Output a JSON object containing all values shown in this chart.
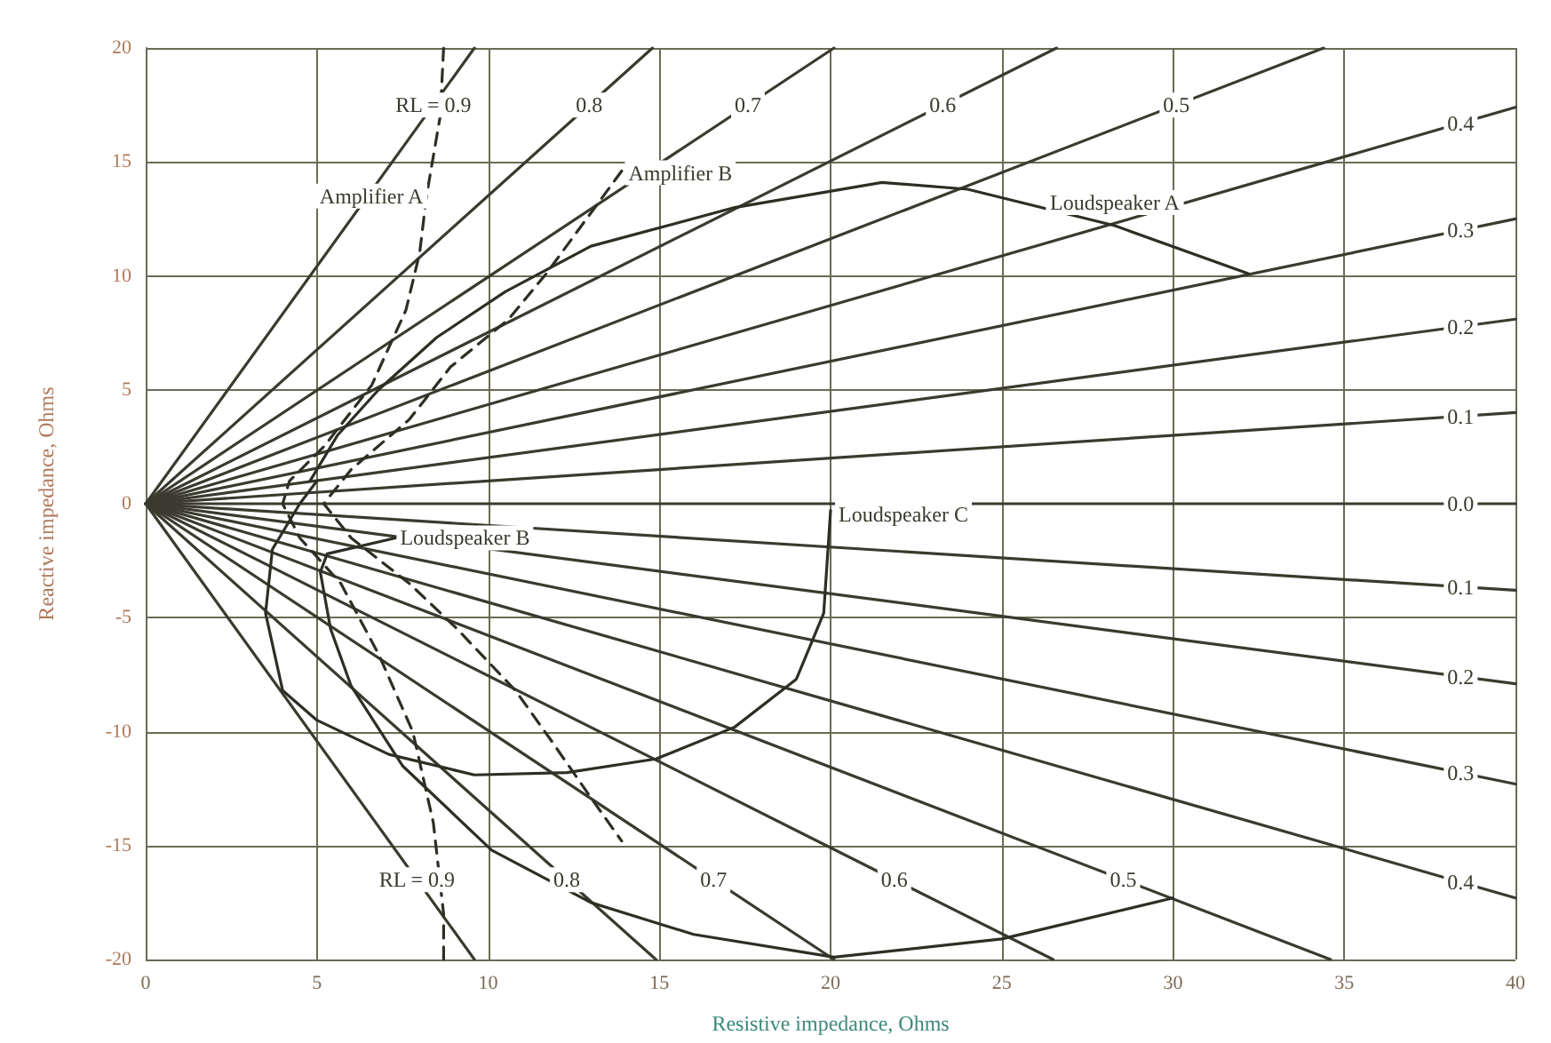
{
  "chart_data": {
    "type": "line",
    "xlabel": "Resistive impedance, Ohms",
    "ylabel": "Reactive impedance, Ohms",
    "xlim": [
      0,
      40
    ],
    "xticks": [
      0,
      5,
      10,
      15,
      20,
      25,
      30,
      35,
      40
    ],
    "ylim": [
      -20,
      20
    ],
    "yticks": [
      -20,
      -15,
      -10,
      -5,
      0,
      5,
      10,
      15,
      20
    ],
    "grid": true,
    "marker": "none",
    "line_style": "solid",
    "series": [
      {
        "name": "RL = 0.9",
        "color": "#3a3a2e",
        "x": [
          0,
          9.6
        ],
        "values": [
          0,
          20
        ]
      },
      {
        "name": "0.8",
        "color": "#3a3a2e",
        "x": [
          0,
          14.8
        ],
        "values": [
          0,
          20
        ]
      },
      {
        "name": "0.7",
        "color": "#3a3a2e",
        "x": [
          0,
          20.1
        ],
        "values": [
          0,
          20
        ]
      },
      {
        "name": "0.6",
        "color": "#3a3a2e",
        "x": [
          0,
          26.6
        ],
        "values": [
          0,
          20
        ]
      },
      {
        "name": "0.5",
        "color": "#3a3a2e",
        "x": [
          0,
          34.4
        ],
        "values": [
          0,
          20
        ]
      },
      {
        "name": "0.4",
        "color": "#3a3a2e",
        "x": [
          0,
          40
        ],
        "values": [
          0,
          17.4
        ]
      },
      {
        "name": "0.3",
        "color": "#3a3a2e",
        "x": [
          0,
          40
        ],
        "values": [
          0,
          12.5
        ]
      },
      {
        "name": "0.2",
        "color": "#3a3a2e",
        "x": [
          0,
          40
        ],
        "values": [
          0,
          8.1
        ]
      },
      {
        "name": "0.1",
        "color": "#3a3a2e",
        "x": [
          0,
          40
        ],
        "values": [
          0,
          4
        ]
      },
      {
        "name": "0.0",
        "color": "#3a3a2e",
        "x": [
          0,
          40
        ],
        "values": [
          0,
          0
        ]
      },
      {
        "name": "0.1",
        "color": "#3a3a2e",
        "x": [
          0,
          40
        ],
        "values": [
          0,
          -3.8
        ]
      },
      {
        "name": "0.2",
        "color": "#3a3a2e",
        "x": [
          0,
          40
        ],
        "values": [
          0,
          -7.9
        ]
      },
      {
        "name": "0.3",
        "color": "#3a3a2e",
        "x": [
          0,
          40
        ],
        "values": [
          0,
          -12.3
        ]
      },
      {
        "name": "0.4",
        "color": "#3a3a2e",
        "x": [
          0,
          40
        ],
        "values": [
          0,
          -17.3
        ]
      },
      {
        "name": "0.5",
        "color": "#3a3a2e",
        "x": [
          0,
          34.6
        ],
        "values": [
          0,
          -20
        ]
      },
      {
        "name": "0.6",
        "color": "#3a3a2e",
        "x": [
          0,
          26.5
        ],
        "values": [
          0,
          -20
        ]
      },
      {
        "name": "0.7",
        "color": "#3a3a2e",
        "x": [
          0,
          20.1
        ],
        "values": [
          0,
          -20
        ]
      },
      {
        "name": "0.8",
        "color": "#3a3a2e",
        "x": [
          0,
          14.9
        ],
        "values": [
          0,
          -20
        ]
      },
      {
        "name": "RL = 0.9",
        "color": "#3a3a2e",
        "x": [
          0,
          9.6
        ],
        "values": [
          0,
          -20
        ]
      },
      {
        "name": "Amplifier A",
        "color": "#2e2e24",
        "line_style": "dashed",
        "x": [
          8.7,
          8.6,
          8.2,
          8.0,
          7.6,
          6.6,
          5.2,
          4.2,
          4.0,
          4.5,
          5.7,
          6.8,
          7.8,
          8.4,
          8.7,
          8.7
        ],
        "values": [
          20,
          17,
          13.5,
          11,
          8.5,
          5.2,
          2.5,
          1,
          0,
          -1.5,
          -3.5,
          -6.6,
          -10,
          -14,
          -18,
          -20
        ]
      },
      {
        "name": "Amplifier B",
        "color": "#2e2e24",
        "line_style": "dashed",
        "x": [
          13.9,
          11.7,
          10.6,
          8.9,
          7.7,
          6.0,
          5.2,
          6.0,
          7.7,
          9.1,
          10.8,
          11.8,
          13.0,
          13.9
        ],
        "values": [
          14.6,
          10.1,
          8.1,
          6.0,
          3.7,
          1.5,
          0,
          -1.5,
          -3.5,
          -5.5,
          -8.2,
          -10.3,
          -12.9,
          -14.8
        ]
      },
      {
        "name": "Loudspeaker A",
        "color": "#2e2e24",
        "x": [
          4.8,
          5.6,
          6.8,
          8.5,
          10.5,
          13,
          17.2,
          21.5,
          24,
          28.3,
          32.2
        ],
        "values": [
          1,
          3,
          5,
          7.3,
          9.3,
          11.3,
          13,
          14.1,
          13.8,
          12.2,
          10.1
        ]
      },
      {
        "name": "Loudspeaker B",
        "color": "#2e2e24",
        "x": [
          7.3,
          5.3,
          5.1,
          5.4,
          6,
          7.5,
          10.1,
          13,
          16,
          20.1,
          25,
          30
        ],
        "values": [
          -1.5,
          -2.2,
          -3,
          -5.5,
          -8,
          -11.5,
          -15.2,
          -17.5,
          -18.9,
          -19.9,
          -19.1,
          -17.3
        ]
      },
      {
        "name": "Loudspeaker C",
        "color": "#2e2e24",
        "x": [
          20,
          19.8,
          19,
          17.2,
          14.9,
          12.3,
          9.6,
          7.1,
          5,
          4,
          3.5,
          3.7,
          4.5,
          5
        ],
        "values": [
          -0.3,
          -4.8,
          -7.7,
          -9.8,
          -11.2,
          -11.8,
          -11.9,
          -11,
          -9.5,
          -8.2,
          -4.8,
          -2,
          0,
          1
        ]
      }
    ]
  }
}
